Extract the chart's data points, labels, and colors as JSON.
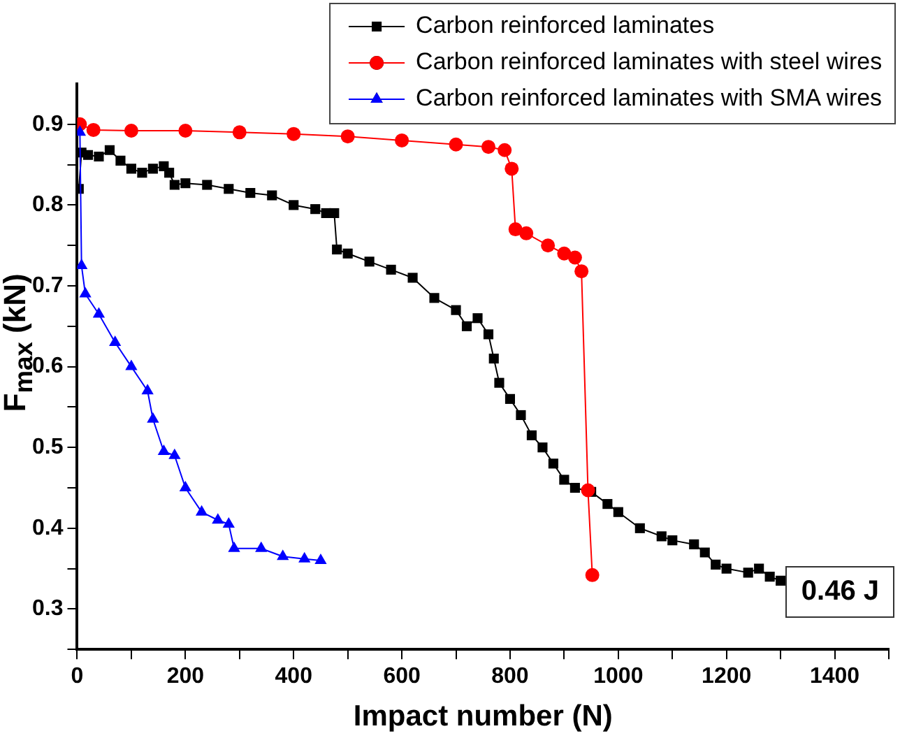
{
  "chart_data": {
    "type": "line",
    "xlabel": "Impact number (N)",
    "ylabel": "F$_{max}$ (kN)",
    "xlim": [
      0,
      1500
    ],
    "ylim": [
      0.25,
      0.95
    ],
    "xticks": [
      0,
      {
        "value": 100,
        "label": null
      },
      200,
      {
        "value": 300,
        "label": null
      },
      400,
      {
        "value": 500,
        "label": null
      },
      600,
      {
        "value": 700,
        "label": null
      },
      800,
      {
        "value": 900,
        "label": null
      },
      1000,
      {
        "value": 1100,
        "label": null
      },
      1200,
      {
        "value": 1300,
        "label": null
      },
      1400,
      {
        "value": 1500,
        "label": null
      }
    ],
    "yticks": [
      {
        "value": 0.25,
        "label": null
      },
      0.3,
      {
        "value": 0.35,
        "label": null
      },
      0.4,
      {
        "value": 0.45,
        "label": null
      },
      0.5,
      {
        "value": 0.55,
        "label": null
      },
      0.6,
      {
        "value": 0.65,
        "label": null
      },
      0.7,
      {
        "value": 0.75,
        "label": null
      },
      0.8,
      {
        "value": 0.85,
        "label": null
      },
      0.9
    ],
    "grid": false,
    "legend": "top right",
    "line_style": "solid",
    "annotations": [
      "0.46 J"
    ],
    "series": [
      {
        "name": "Carbon reinforced laminates",
        "color": "#000000",
        "marker": "square",
        "x": [
          3,
          8,
          20,
          40,
          60,
          80,
          100,
          120,
          140,
          160,
          170,
          180,
          200,
          240,
          280,
          320,
          360,
          400,
          440,
          460,
          475,
          480,
          500,
          540,
          580,
          620,
          660,
          700,
          720,
          740,
          760,
          770,
          780,
          800,
          820,
          840,
          860,
          880,
          900,
          920,
          950,
          980,
          1000,
          1040,
          1080,
          1100,
          1140,
          1160,
          1180,
          1200,
          1240,
          1260,
          1280,
          1300
        ],
        "values": [
          0.82,
          0.865,
          0.862,
          0.86,
          0.868,
          0.855,
          0.845,
          0.84,
          0.845,
          0.848,
          0.84,
          0.825,
          0.827,
          0.825,
          0.82,
          0.815,
          0.812,
          0.8,
          0.795,
          0.79,
          0.79,
          0.745,
          0.74,
          0.73,
          0.72,
          0.71,
          0.685,
          0.67,
          0.65,
          0.66,
          0.64,
          0.61,
          0.58,
          0.56,
          0.54,
          0.515,
          0.5,
          0.48,
          0.46,
          0.45,
          0.445,
          0.43,
          0.42,
          0.4,
          0.39,
          0.385,
          0.38,
          0.37,
          0.355,
          0.35,
          0.345,
          0.35,
          0.34,
          0.335
        ]
      },
      {
        "name": "Carbon reinforced laminates with steel wires",
        "color": "#ff0000",
        "marker": "circle",
        "x": [
          5,
          30,
          100,
          200,
          300,
          400,
          500,
          600,
          700,
          760,
          790,
          803,
          810,
          830,
          870,
          900,
          920,
          932,
          944,
          952
        ],
        "values": [
          0.9,
          0.893,
          0.892,
          0.892,
          0.89,
          0.888,
          0.885,
          0.88,
          0.875,
          0.872,
          0.868,
          0.845,
          0.77,
          0.765,
          0.75,
          0.74,
          0.735,
          0.718,
          0.447,
          0.342
        ]
      },
      {
        "name": "Carbon reinforced laminates with SMA wires",
        "color": "#0000ff",
        "marker": "triangle",
        "x": [
          5,
          8,
          15,
          40,
          70,
          100,
          130,
          140,
          160,
          180,
          200,
          230,
          260,
          280,
          290,
          340,
          380,
          420,
          450
        ],
        "values": [
          0.89,
          0.725,
          0.69,
          0.665,
          0.63,
          0.6,
          0.57,
          0.535,
          0.495,
          0.49,
          0.45,
          0.42,
          0.41,
          0.405,
          0.375,
          0.375,
          0.365,
          0.362,
          0.36
        ]
      }
    ]
  }
}
